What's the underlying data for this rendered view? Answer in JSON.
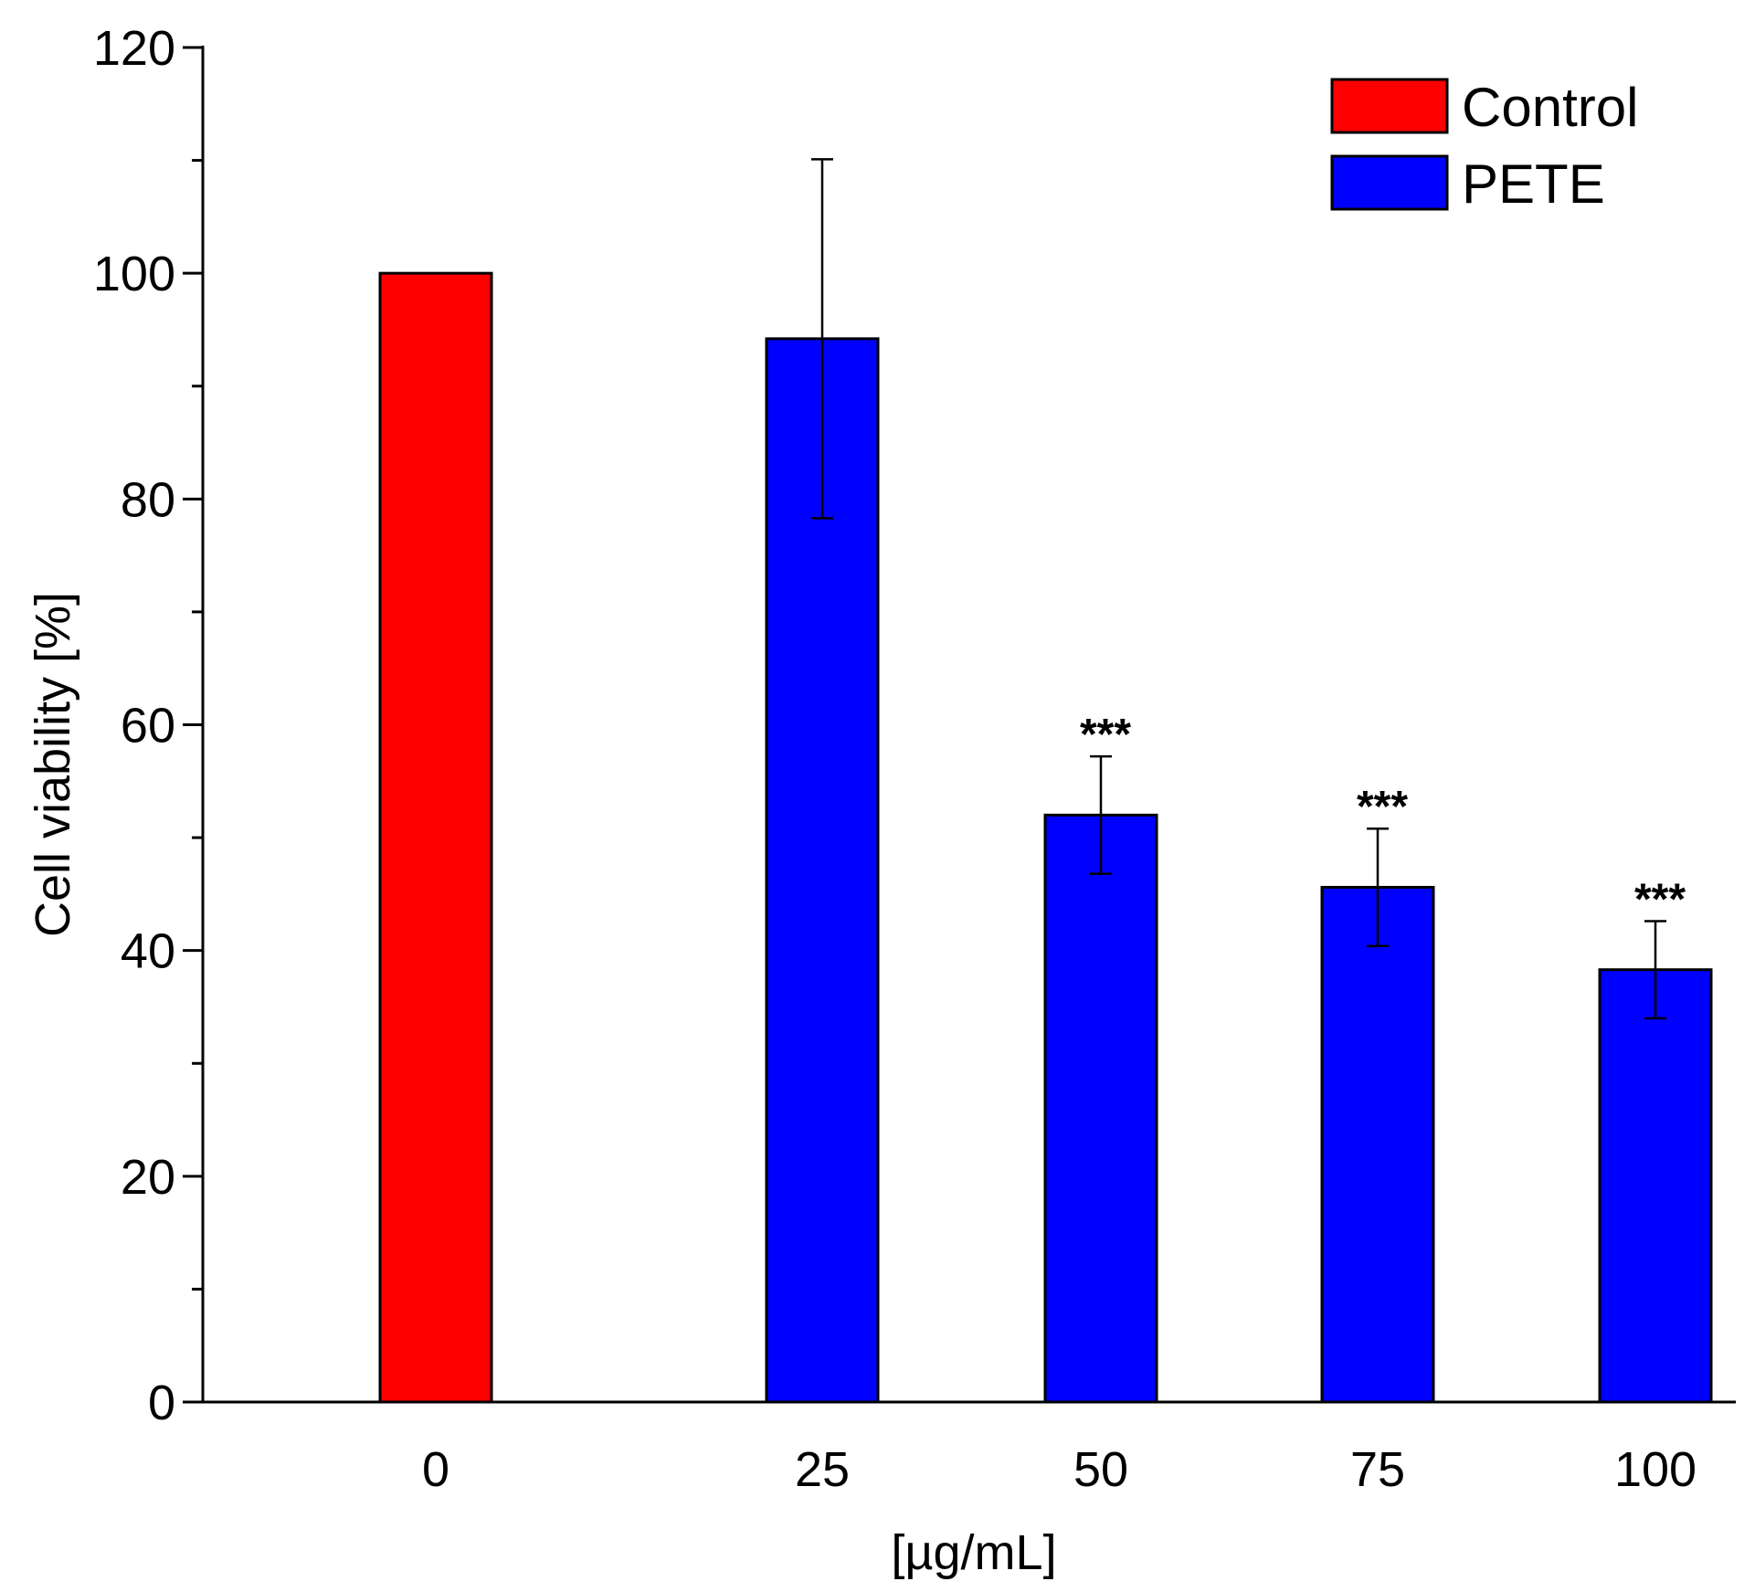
{
  "chart_data": {
    "type": "bar",
    "title": "",
    "xlabel": "[µg/mL]",
    "ylabel": "Cell viability [%]",
    "ylim": [
      0,
      120
    ],
    "y_major_ticks": [
      0,
      20,
      40,
      60,
      80,
      100,
      120
    ],
    "y_minor_ticks": [
      10,
      30,
      50,
      70,
      90,
      110
    ],
    "grid": false,
    "legend_position": "top-right",
    "categories": [
      "0",
      "25",
      "50",
      "75",
      "100"
    ],
    "series": [
      {
        "name": "Control",
        "color": "#ff0000",
        "values": [
          100,
          null,
          null,
          null,
          null
        ],
        "errors": [
          null,
          null,
          null,
          null,
          null
        ]
      },
      {
        "name": "PETE",
        "color": "#0000ff",
        "values": [
          null,
          94.2,
          52.0,
          45.6,
          38.3
        ],
        "errors": [
          null,
          15.9,
          5.2,
          5.2,
          4.3
        ]
      }
    ],
    "annotations": [
      {
        "category": "50",
        "text": "***"
      },
      {
        "category": "75",
        "text": "***"
      },
      {
        "category": "100",
        "text": "***"
      }
    ]
  }
}
